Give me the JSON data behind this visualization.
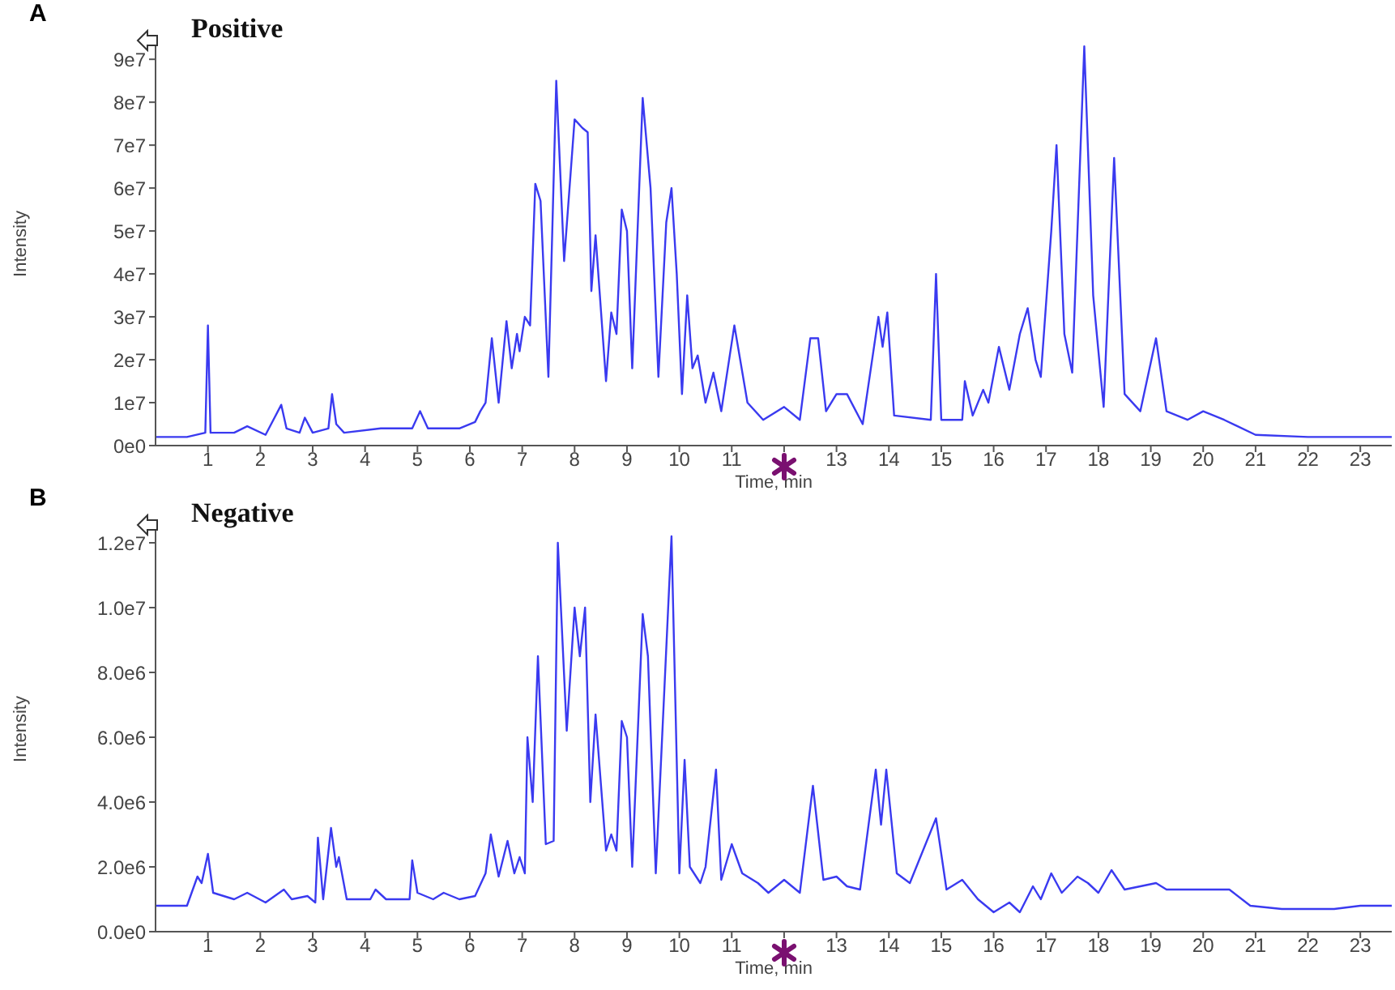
{
  "chart_data": [
    {
      "type": "line",
      "title": "Positive",
      "xlabel": "Time, min",
      "ylabel": "Intensity",
      "annotations": [
        "A"
      ],
      "color": "#3a3af0",
      "xlim": [
        0,
        23.6
      ],
      "xticks": [
        1,
        2,
        3,
        4,
        5,
        6,
        7,
        8,
        9,
        10,
        11,
        {
          "value": 12,
          "label": null
        },
        13,
        14,
        15,
        16,
        17,
        18,
        19,
        20,
        21,
        22,
        23
      ],
      "ylim": [
        0,
        94000000.0
      ],
      "yticks": [
        {
          "value": 0,
          "label": "0e0"
        },
        {
          "value": 10000000.0,
          "label": "1e7"
        },
        {
          "value": 20000000.0,
          "label": "2e7"
        },
        {
          "value": 30000000.0,
          "label": "3e7"
        },
        {
          "value": 40000000.0,
          "label": "4e7"
        },
        {
          "value": 50000000.0,
          "label": "5e7"
        },
        {
          "value": 60000000.0,
          "label": "6e7"
        },
        {
          "value": 70000000.0,
          "label": "7e7"
        },
        {
          "value": 80000000.0,
          "label": "8e7"
        },
        {
          "value": 90000000.0,
          "label": "9e7"
        }
      ],
      "x": [
        0,
        0.6,
        0.95,
        1.0,
        1.05,
        1.5,
        1.75,
        2.1,
        2.4,
        2.5,
        2.75,
        2.85,
        3.0,
        3.3,
        3.37,
        3.45,
        3.6,
        4.3,
        4.9,
        5.05,
        5.2,
        5.8,
        6.1,
        6.2,
        6.3,
        6.42,
        6.55,
        6.7,
        6.8,
        6.9,
        6.95,
        7.05,
        7.15,
        7.25,
        7.35,
        7.5,
        7.65,
        7.8,
        8.0,
        8.15,
        8.25,
        8.32,
        8.4,
        8.6,
        8.7,
        8.8,
        8.9,
        9.0,
        9.1,
        9.3,
        9.45,
        9.6,
        9.75,
        9.85,
        9.95,
        10.05,
        10.15,
        10.25,
        10.35,
        10.5,
        10.65,
        10.8,
        11.05,
        11.3,
        11.6,
        12.0,
        12.3,
        12.5,
        12.65,
        12.8,
        13.0,
        13.2,
        13.5,
        13.8,
        13.88,
        13.97,
        14.1,
        14.8,
        14.9,
        15.0,
        15.4,
        15.45,
        15.6,
        15.8,
        15.9,
        16.1,
        16.3,
        16.5,
        16.65,
        16.8,
        16.9,
        17.1,
        17.2,
        17.35,
        17.5,
        17.73,
        17.9,
        18.1,
        18.3,
        18.5,
        18.8,
        19.1,
        19.3,
        19.7,
        20.0,
        20.4,
        21.0,
        22.0,
        23.6
      ],
      "values": [
        2000000.0,
        2000000.0,
        3000000.0,
        28000000.0,
        3000000.0,
        3000000.0,
        4500000.0,
        2500000.0,
        9500000.0,
        4000000.0,
        3000000.0,
        6500000.0,
        3000000.0,
        4000000.0,
        12000000.0,
        5000000.0,
        3000000.0,
        4000000.0,
        4000000.0,
        8000000.0,
        4000000.0,
        4000000.0,
        5500000.0,
        8000000.0,
        10000000.0,
        25000000.0,
        10000000.0,
        29000000.0,
        18000000.0,
        26000000.0,
        22000000.0,
        30000000.0,
        28000000.0,
        61000000.0,
        57000000.0,
        16000000.0,
        85000000.0,
        43000000.0,
        76000000.0,
        74000000.0,
        73000000.0,
        36000000.0,
        49000000.0,
        15000000.0,
        31000000.0,
        26000000.0,
        55000000.0,
        50000000.0,
        18000000.0,
        81000000.0,
        60000000.0,
        16000000.0,
        52000000.0,
        60000000.0,
        40000000.0,
        12000000.0,
        35000000.0,
        18000000.0,
        21000000.0,
        10000000.0,
        17000000.0,
        8000000.0,
        28000000.0,
        10000000.0,
        6000000.0,
        9000000.0,
        6000000.0,
        25000000.0,
        25000000.0,
        8000000.0,
        12000000.0,
        12000000.0,
        5000000.0,
        30000000.0,
        23000000.0,
        31000000.0,
        7000000.0,
        6000000.0,
        40000000.0,
        6000000.0,
        6000000.0,
        15000000.0,
        7000000.0,
        13000000.0,
        10000000.0,
        23000000.0,
        13000000.0,
        26000000.0,
        32000000.0,
        20000000.0,
        16000000.0,
        50000000.0,
        70000000.0,
        26000000.0,
        17000000.0,
        93000000.0,
        35000000.0,
        9000000.0,
        67000000.0,
        12000000.0,
        8000000.0,
        25000000.0,
        8000000.0,
        6000000.0,
        8000000.0,
        6000000.0,
        2500000.0,
        2000000.0,
        2000000.0
      ]
    },
    {
      "type": "line",
      "title": "Negative",
      "xlabel": "Time, min",
      "ylabel": "Intensity",
      "annotations": [
        "B"
      ],
      "color": "#3a3af0",
      "xlim": [
        0,
        23.6
      ],
      "xticks": [
        1,
        2,
        3,
        4,
        5,
        6,
        7,
        8,
        9,
        10,
        11,
        {
          "value": 12,
          "label": null
        },
        13,
        14,
        15,
        16,
        17,
        18,
        19,
        20,
        21,
        22,
        23
      ],
      "ylim": [
        0,
        12500000.0
      ],
      "yticks": [
        {
          "value": 0,
          "label": "0.0e0"
        },
        {
          "value": 2000000.0,
          "label": "2.0e6"
        },
        {
          "value": 4000000.0,
          "label": "4.0e6"
        },
        {
          "value": 6000000.0,
          "label": "6.0e6"
        },
        {
          "value": 8000000.0,
          "label": "8.0e6"
        },
        {
          "value": 10000000.0,
          "label": "1.0e7"
        },
        {
          "value": 12000000.0,
          "label": "1.2e7"
        }
      ],
      "x": [
        0,
        0.6,
        0.8,
        0.88,
        1.0,
        1.1,
        1.5,
        1.75,
        2.1,
        2.45,
        2.6,
        2.9,
        3.05,
        3.1,
        3.2,
        3.35,
        3.45,
        3.5,
        3.65,
        4.1,
        4.2,
        4.4,
        4.85,
        4.9,
        5.0,
        5.3,
        5.5,
        5.8,
        6.1,
        6.3,
        6.4,
        6.55,
        6.72,
        6.85,
        6.95,
        7.05,
        7.1,
        7.2,
        7.3,
        7.45,
        7.6,
        7.68,
        7.85,
        8.0,
        8.1,
        8.2,
        8.3,
        8.4,
        8.6,
        8.7,
        8.8,
        8.9,
        9.0,
        9.1,
        9.3,
        9.4,
        9.55,
        9.85,
        10.0,
        10.1,
        10.2,
        10.4,
        10.5,
        10.7,
        10.8,
        11.0,
        11.2,
        11.5,
        11.7,
        12.0,
        12.3,
        12.55,
        12.75,
        13.0,
        13.2,
        13.45,
        13.75,
        13.85,
        13.95,
        14.15,
        14.4,
        14.9,
        15.1,
        15.4,
        15.7,
        16.0,
        16.3,
        16.5,
        16.75,
        16.9,
        17.1,
        17.3,
        17.6,
        17.8,
        18.0,
        18.25,
        18.5,
        19.1,
        19.3,
        20.5,
        20.9,
        21.5,
        22.5,
        23.0,
        23.6
      ],
      "values": [
        800000.0,
        800000.0,
        1700000.0,
        1500000.0,
        2400000.0,
        1200000.0,
        1000000.0,
        1200000.0,
        900000.0,
        1300000.0,
        1000000.0,
        1100000.0,
        900000.0,
        2900000.0,
        1000000.0,
        3200000.0,
        2000000.0,
        2300000.0,
        1000000.0,
        1000000.0,
        1300000.0,
        1000000.0,
        1000000.0,
        2200000.0,
        1200000.0,
        1000000.0,
        1200000.0,
        1000000.0,
        1100000.0,
        1800000.0,
        3000000.0,
        1700000.0,
        2800000.0,
        1800000.0,
        2300000.0,
        1800000.0,
        6000000.0,
        4000000.0,
        8500000.0,
        2700000.0,
        2800000.0,
        12000000.0,
        6200000.0,
        10000000.0,
        8500000.0,
        10000000.0,
        4000000.0,
        6700000.0,
        2500000.0,
        3000000.0,
        2500000.0,
        6500000.0,
        6000000.0,
        2000000.0,
        9800000.0,
        8500000.0,
        1800000.0,
        12200000.0,
        1800000.0,
        5300000.0,
        2000000.0,
        1500000.0,
        2000000.0,
        5000000.0,
        1600000.0,
        2700000.0,
        1800000.0,
        1500000.0,
        1200000.0,
        1600000.0,
        1200000.0,
        4500000.0,
        1600000.0,
        1700000.0,
        1400000.0,
        1300000.0,
        5000000.0,
        3300000.0,
        5000000.0,
        1800000.0,
        1500000.0,
        3500000.0,
        1300000.0,
        1600000.0,
        1000000.0,
        600000.0,
        900000.0,
        600000.0,
        1400000.0,
        1000000.0,
        1800000.0,
        1200000.0,
        1700000.0,
        1500000.0,
        1200000.0,
        1900000.0,
        1300000.0,
        1500000.0,
        1300000.0,
        1300000.0,
        800000.0,
        700000.0,
        700000.0,
        800000.0,
        800000.0
      ]
    }
  ]
}
